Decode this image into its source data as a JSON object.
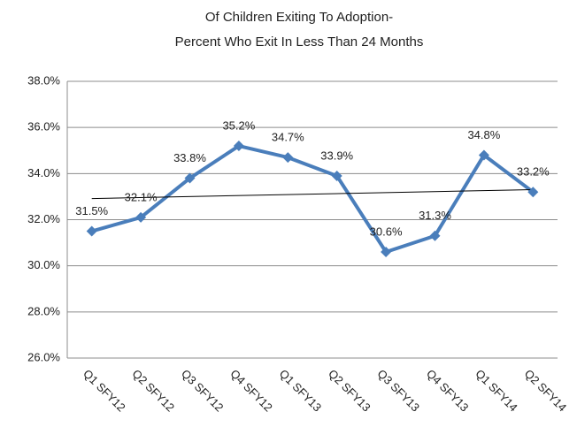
{
  "chart_data": {
    "type": "line",
    "title": "Of Children Exiting To Adoption-",
    "subtitle": "Percent Who Exit In Less Than 24 Months",
    "categories": [
      "Q1 SFY12",
      "Q2 SFY12",
      "Q3 SFY12",
      "Q4 SFY12",
      "Q1 SFY13",
      "Q2 SFY13",
      "Q3 SFY13",
      "Q4 SFY13",
      "Q1 SFY14",
      "Q2 SFY14"
    ],
    "series": [
      {
        "color": "#4a7ebb",
        "values": [
          31.5,
          32.1,
          33.8,
          35.2,
          34.7,
          33.9,
          30.6,
          31.3,
          34.8,
          33.2
        ],
        "value_labels": [
          "31.5%",
          "32.1%",
          "33.8%",
          "35.2%",
          "34.7%",
          "33.9%",
          "30.6%",
          "31.3%",
          "34.8%",
          "33.2%"
        ]
      }
    ],
    "ylim": [
      26,
      38
    ],
    "yticks": [
      {
        "value": 26,
        "label": "26.0%"
      },
      {
        "value": 28,
        "label": "28.0%"
      },
      {
        "value": 30,
        "label": "30.0%"
      },
      {
        "value": 32,
        "label": "32.0%"
      },
      {
        "value": 34,
        "label": "34.0%"
      },
      {
        "value": 36,
        "label": "36.0%"
      },
      {
        "value": 38,
        "label": "38.0%"
      }
    ],
    "grid": true,
    "trendline": true,
    "trendline_color": "#000000"
  }
}
